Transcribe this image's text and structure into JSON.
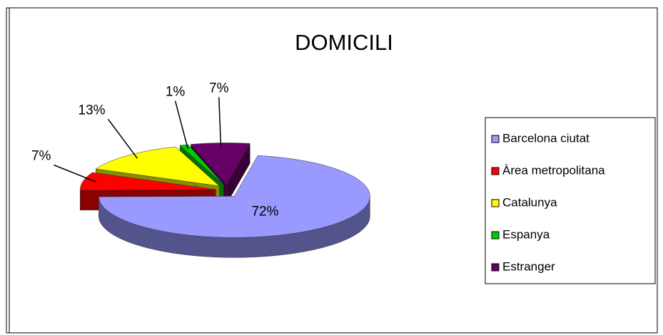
{
  "chart_data": {
    "type": "pie",
    "title": "DOMICILI",
    "categories": [
      "Barcelona ciutat",
      "Àrea metropolitana",
      "Catalunya",
      "Espanya",
      "Estranger"
    ],
    "values": [
      72,
      7,
      13,
      1,
      7
    ],
    "value_labels": [
      "72%",
      "7%",
      "13%",
      "1%",
      "7%"
    ],
    "colors": [
      "#9999ff",
      "#ff0000",
      "#ffff00",
      "#00cc00",
      "#660066"
    ],
    "legend": "right"
  }
}
